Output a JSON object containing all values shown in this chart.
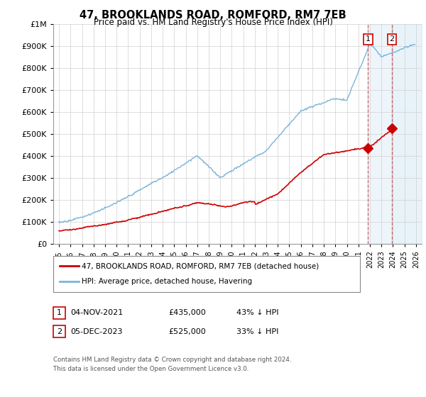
{
  "title": "47, BROOKLANDS ROAD, ROMFORD, RM7 7EB",
  "subtitle": "Price paid vs. HM Land Registry's House Price Index (HPI)",
  "legend_line1": "47, BROOKLANDS ROAD, ROMFORD, RM7 7EB (detached house)",
  "legend_line2": "HPI: Average price, detached house, Havering",
  "footnote1": "Contains HM Land Registry data © Crown copyright and database right 2024.",
  "footnote2": "This data is licensed under the Open Government Licence v3.0.",
  "table": [
    {
      "num": "1",
      "date": "04-NOV-2021",
      "price": "£435,000",
      "hpi": "43% ↓ HPI"
    },
    {
      "num": "2",
      "date": "05-DEC-2023",
      "price": "£525,000",
      "hpi": "33% ↓ HPI"
    }
  ],
  "sale1_year": 2021.84,
  "sale1_price": 435000,
  "sale2_year": 2023.92,
  "sale2_price": 525000,
  "hpi_color": "#7ab4d8",
  "price_color": "#cc0000",
  "ylim": [
    0,
    1000000
  ],
  "xlim_start": 1994.5,
  "xlim_end": 2026.5,
  "tick_years": [
    1995,
    1996,
    1997,
    1998,
    1999,
    2000,
    2001,
    2002,
    2003,
    2004,
    2005,
    2006,
    2007,
    2008,
    2009,
    2010,
    2011,
    2012,
    2013,
    2014,
    2015,
    2016,
    2017,
    2018,
    2019,
    2020,
    2021,
    2022,
    2023,
    2024,
    2025,
    2026
  ],
  "yticks": [
    0,
    100000,
    200000,
    300000,
    400000,
    500000,
    600000,
    700000,
    800000,
    900000,
    1000000
  ],
  "ytick_labels": [
    "£0",
    "£100K",
    "£200K",
    "£300K",
    "£400K",
    "£500K",
    "£600K",
    "£700K",
    "£800K",
    "£900K",
    "£1M"
  ]
}
